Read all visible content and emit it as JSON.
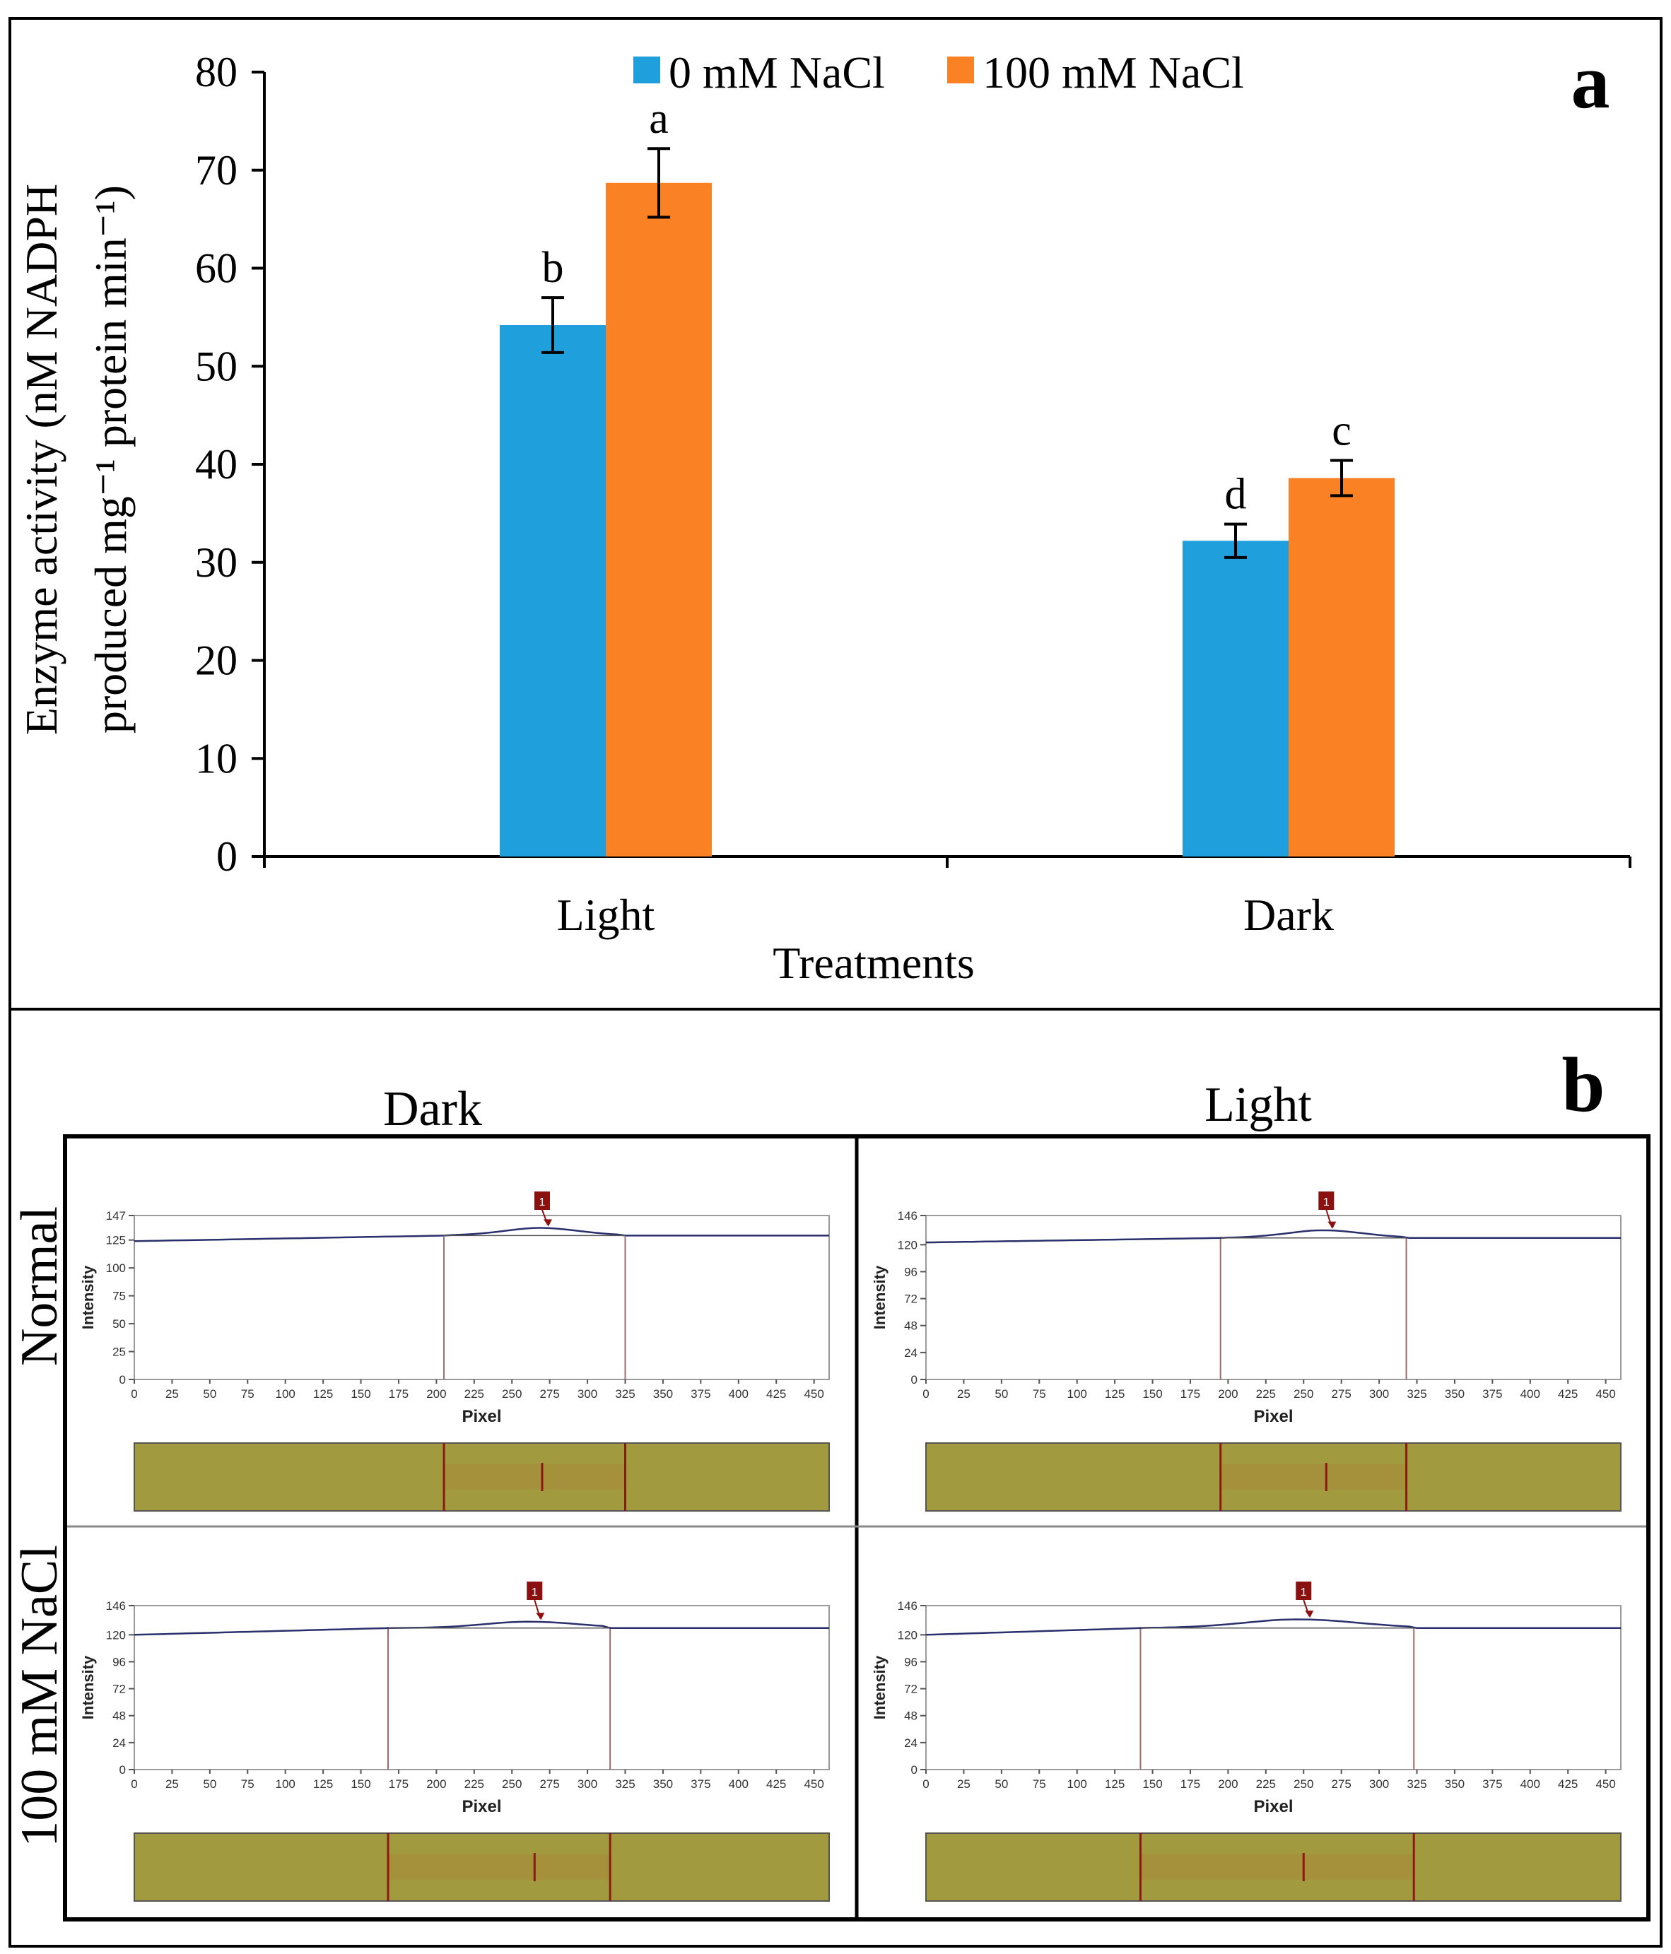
{
  "panel_a": {
    "letter": "a",
    "legend": [
      {
        "label": "0 mM NaCl",
        "color": "#1f9fdb"
      },
      {
        "label": "100 mM NaCl",
        "color": "#fb8125"
      }
    ],
    "ylabel_line1": "Enzyme activity (nM NADPH",
    "ylabel_line2": "produced mg⁻¹ protein min⁻¹)",
    "xlabel": "Treatments"
  },
  "chart_data": [
    {
      "type": "bar",
      "categories": [
        "Light",
        "Dark"
      ],
      "series": [
        {
          "name": "0 mM NaCl",
          "values": [
            54.2,
            32.2
          ],
          "errors": [
            2.8,
            1.7
          ],
          "letters": [
            "b",
            "d"
          ],
          "color": "#1f9fdb"
        },
        {
          "name": "100 mM NaCl",
          "values": [
            68.7,
            38.6
          ],
          "errors": [
            3.5,
            1.8
          ],
          "letters": [
            "a",
            "c"
          ],
          "color": "#fb8125"
        }
      ],
      "title": "",
      "xlabel": "Treatments",
      "ylabel": "Enzyme activity (nM NADPH produced mg⁻¹ protein min⁻¹)",
      "ylim": [
        0,
        80
      ],
      "yticks": [
        0,
        10,
        20,
        30,
        40,
        50,
        60,
        70,
        80
      ],
      "legend": "top-center",
      "grid": false
    }
  ],
  "panel_b": {
    "letter": "b",
    "col_labels": [
      "Dark",
      "Light"
    ],
    "row_labels": [
      "Normal",
      "100 mM NaCl"
    ],
    "plot_ylabel": "Intensity",
    "plot_xlabel": "Pixel",
    "marker_label": "1",
    "xticks": [
      "0",
      "25",
      "50",
      "75",
      "100",
      "125",
      "150",
      "175",
      "200",
      "225",
      "250",
      "275",
      "300",
      "325",
      "350",
      "375",
      "400",
      "425",
      "450"
    ],
    "plots": [
      {
        "id": "normal-dark",
        "yticks": [
          "147",
          "125",
          "100",
          "75",
          "50",
          "25",
          "0"
        ],
        "ymax": 147,
        "baseline_value": 129,
        "peak_value": 136,
        "start_value": 124,
        "bound_left": 205,
        "bound_right": 325,
        "peak_at": 270
      },
      {
        "id": "normal-light",
        "yticks": [
          "146",
          "120",
          "96",
          "72",
          "48",
          "24",
          "0"
        ],
        "ymax": 146,
        "baseline_value": 126,
        "peak_value": 133,
        "start_value": 122,
        "bound_left": 195,
        "bound_right": 318,
        "peak_at": 265
      },
      {
        "id": "nacl-dark",
        "yticks": [
          "146",
          "120",
          "96",
          "72",
          "48",
          "24",
          "0"
        ],
        "ymax": 146,
        "baseline_value": 126,
        "peak_value": 132,
        "start_value": 120,
        "bound_left": 168,
        "bound_right": 315,
        "peak_at": 265
      },
      {
        "id": "nacl-light",
        "yticks": [
          "146",
          "120",
          "96",
          "72",
          "48",
          "24",
          "0"
        ],
        "ymax": 146,
        "baseline_value": 126,
        "peak_value": 134,
        "start_value": 120,
        "bound_left": 142,
        "bound_right": 323,
        "peak_at": 250
      }
    ]
  }
}
